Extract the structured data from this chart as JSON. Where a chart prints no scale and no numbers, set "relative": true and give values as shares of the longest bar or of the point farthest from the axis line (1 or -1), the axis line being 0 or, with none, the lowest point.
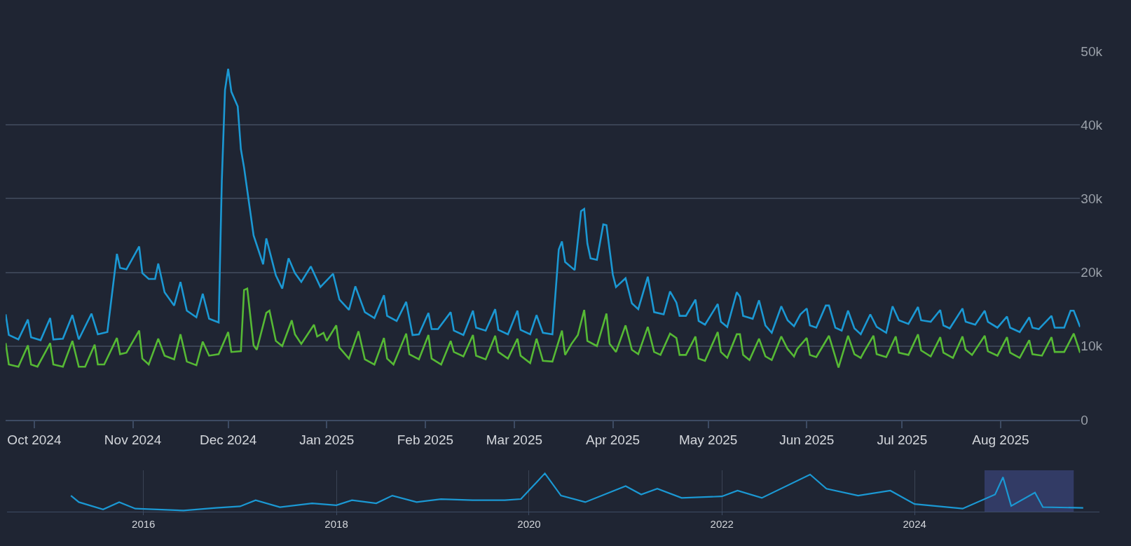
{
  "chart_data": [
    {
      "type": "line",
      "grid": "y",
      "marker": "none",
      "line_style": "solid",
      "xlim": [
        "2024-09-22",
        "2025-08-26"
      ],
      "xticks": [
        {
          "value": "2024-10-01",
          "label": "Oct 2024"
        },
        {
          "value": "2024-11-01",
          "label": "Nov 2024"
        },
        {
          "value": "2024-12-01",
          "label": "Dec 2024"
        },
        {
          "value": "2025-01-01",
          "label": "Jan 2025"
        },
        {
          "value": "2025-02-01",
          "label": "Feb 2025"
        },
        {
          "value": "2025-03-01",
          "label": "Mar 2025"
        },
        {
          "value": "2025-04-01",
          "label": "Apr 2025"
        },
        {
          "value": "2025-05-01",
          "label": "May 2025"
        },
        {
          "value": "2025-06-01",
          "label": "Jun 2025"
        },
        {
          "value": "2025-07-01",
          "label": "Jul 2025"
        },
        {
          "value": "2025-08-01",
          "label": "Aug 2025"
        }
      ],
      "ylim": [
        0,
        50000
      ],
      "yticks": [
        0,
        {
          "value": 10000,
          "label": "10k"
        },
        {
          "value": 20000,
          "label": "20k"
        },
        {
          "value": 30000,
          "label": "30k"
        },
        {
          "value": 40000,
          "label": "40k"
        },
        {
          "value": 50000,
          "label": "50k"
        }
      ],
      "series": [
        {
          "color": "#1b98d3",
          "x": [
            "2024-09-22",
            "2024-09-23",
            "2024-09-26",
            "2024-09-29",
            "2024-09-30",
            "2024-10-03",
            "2024-10-06",
            "2024-10-07",
            "2024-10-10",
            "2024-10-13",
            "2024-10-15",
            "2024-10-19",
            "2024-10-21",
            "2024-10-24",
            "2024-10-27",
            "2024-10-28",
            "2024-10-30",
            "2024-11-03",
            "2024-11-04",
            "2024-11-06",
            "2024-11-08",
            "2024-11-09",
            "2024-11-11",
            "2024-11-14",
            "2024-11-16",
            "2024-11-18",
            "2024-11-21",
            "2024-11-23",
            "2024-11-25",
            "2024-11-28",
            "2024-11-29",
            "2024-11-30",
            "2024-12-01",
            "2024-12-02",
            "2024-12-04",
            "2024-12-05",
            "2024-12-06",
            "2024-12-09",
            "2024-12-12",
            "2024-12-13",
            "2024-12-16",
            "2024-12-18",
            "2024-12-20",
            "2024-12-22",
            "2024-12-24",
            "2024-12-27",
            "2024-12-30",
            "2025-01-03",
            "2025-01-05",
            "2025-01-08",
            "2025-01-10",
            "2025-01-13",
            "2025-01-16",
            "2025-01-19",
            "2025-01-20",
            "2025-01-23",
            "2025-01-26",
            "2025-01-28",
            "2025-01-30",
            "2025-02-02",
            "2025-02-03",
            "2025-02-05",
            "2025-02-09",
            "2025-02-10",
            "2025-02-13",
            "2025-02-16",
            "2025-02-17",
            "2025-02-20",
            "2025-02-23",
            "2025-02-24",
            "2025-02-27",
            "2025-03-02",
            "2025-03-03",
            "2025-03-06",
            "2025-03-08",
            "2025-03-10",
            "2025-03-13",
            "2025-03-15",
            "2025-03-16",
            "2025-03-17",
            "2025-03-20",
            "2025-03-22",
            "2025-03-23",
            "2025-03-24",
            "2025-03-25",
            "2025-03-27",
            "2025-03-29",
            "2025-03-30",
            "2025-04-01",
            "2025-04-02",
            "2025-04-05",
            "2025-04-07",
            "2025-04-09",
            "2025-04-12",
            "2025-04-14",
            "2025-04-17",
            "2025-04-19",
            "2025-04-21",
            "2025-04-22",
            "2025-04-24",
            "2025-04-27",
            "2025-04-28",
            "2025-04-30",
            "2025-05-04",
            "2025-05-05",
            "2025-05-07",
            "2025-05-10",
            "2025-05-11",
            "2025-05-12",
            "2025-05-15",
            "2025-05-17",
            "2025-05-19",
            "2025-05-21",
            "2025-05-24",
            "2025-05-26",
            "2025-05-28",
            "2025-05-30",
            "2025-06-01",
            "2025-06-02",
            "2025-06-04",
            "2025-06-07",
            "2025-06-08",
            "2025-06-10",
            "2025-06-12",
            "2025-06-14",
            "2025-06-16",
            "2025-06-18",
            "2025-06-21",
            "2025-06-23",
            "2025-06-26",
            "2025-06-28",
            "2025-06-30",
            "2025-07-03",
            "2025-07-06",
            "2025-07-07",
            "2025-07-10",
            "2025-07-13",
            "2025-07-14",
            "2025-07-16",
            "2025-07-20",
            "2025-07-21",
            "2025-07-24",
            "2025-07-27",
            "2025-07-28",
            "2025-07-31",
            "2025-08-03",
            "2025-08-04",
            "2025-08-07",
            "2025-08-10",
            "2025-08-11",
            "2025-08-13",
            "2025-08-17",
            "2025-08-18",
            "2025-08-21",
            "2025-08-23",
            "2025-08-24",
            "2025-08-26"
          ],
          "values": [
            14300,
            11500,
            10900,
            13600,
            11200,
            10800,
            13800,
            10900,
            11000,
            14200,
            10900,
            14400,
            11600,
            11900,
            22500,
            20600,
            20400,
            23500,
            19900,
            19100,
            19100,
            21200,
            17300,
            15500,
            18700,
            14800,
            13900,
            17100,
            13700,
            13200,
            32400,
            44700,
            47600,
            44500,
            42500,
            36700,
            34200,
            25000,
            21100,
            24600,
            19600,
            17800,
            21900,
            19900,
            18700,
            20800,
            18000,
            19800,
            16300,
            14900,
            18100,
            14600,
            13800,
            16900,
            14100,
            13400,
            16000,
            11500,
            11600,
            14500,
            12300,
            12300,
            14600,
            12100,
            11500,
            14800,
            12500,
            12100,
            15000,
            12200,
            11600,
            14800,
            12200,
            11600,
            14200,
            11800,
            11600,
            23100,
            24200,
            21400,
            20300,
            28300,
            28600,
            23900,
            21900,
            21700,
            26500,
            26400,
            19700,
            18000,
            19200,
            15800,
            15000,
            19400,
            14600,
            14300,
            17400,
            15900,
            14100,
            14100,
            16300,
            13400,
            12900,
            15700,
            13300,
            12600,
            17300,
            16700,
            14100,
            13700,
            16200,
            12800,
            11800,
            15400,
            13500,
            12700,
            14300,
            15100,
            12800,
            12500,
            15500,
            15500,
            12500,
            12100,
            14800,
            12400,
            11600,
            14300,
            12600,
            11800,
            15400,
            13500,
            13000,
            15300,
            13500,
            13300,
            14900,
            12800,
            12400,
            15100,
            13300,
            12900,
            14800,
            13300,
            12500,
            14000,
            12500,
            11900,
            13900,
            12500,
            12300,
            14100,
            12500,
            12500,
            14800,
            14800,
            12600
          ]
        },
        {
          "color": "#56b935",
          "x": [
            "2024-09-22",
            "2024-09-23",
            "2024-09-26",
            "2024-09-29",
            "2024-09-30",
            "2024-10-02",
            "2024-10-06",
            "2024-10-07",
            "2024-10-10",
            "2024-10-13",
            "2024-10-15",
            "2024-10-17",
            "2024-10-20",
            "2024-10-21",
            "2024-10-23",
            "2024-10-27",
            "2024-10-28",
            "2024-10-30",
            "2024-11-03",
            "2024-11-04",
            "2024-11-06",
            "2024-11-09",
            "2024-11-11",
            "2024-11-14",
            "2024-11-16",
            "2024-11-18",
            "2024-11-21",
            "2024-11-23",
            "2024-11-25",
            "2024-11-28",
            "2024-12-01",
            "2024-12-02",
            "2024-12-05",
            "2024-12-06",
            "2024-12-07",
            "2024-12-09",
            "2024-12-10",
            "2024-12-13",
            "2024-12-14",
            "2024-12-16",
            "2024-12-18",
            "2024-12-21",
            "2024-12-22",
            "2024-12-24",
            "2024-12-28",
            "2024-12-29",
            "2024-12-31",
            "2025-01-01",
            "2025-01-04",
            "2025-01-05",
            "2025-01-08",
            "2025-01-11",
            "2025-01-13",
            "2025-01-16",
            "2025-01-19",
            "2025-01-20",
            "2025-01-22",
            "2025-01-26",
            "2025-01-27",
            "2025-01-30",
            "2025-02-02",
            "2025-02-03",
            "2025-02-06",
            "2025-02-09",
            "2025-02-10",
            "2025-02-13",
            "2025-02-16",
            "2025-02-17",
            "2025-02-20",
            "2025-02-23",
            "2025-02-24",
            "2025-02-27",
            "2025-03-02",
            "2025-03-03",
            "2025-03-06",
            "2025-03-08",
            "2025-03-10",
            "2025-03-13",
            "2025-03-16",
            "2025-03-17",
            "2025-03-19",
            "2025-03-21",
            "2025-03-23",
            "2025-03-24",
            "2025-03-27",
            "2025-03-30",
            "2025-03-31",
            "2025-04-02",
            "2025-04-05",
            "2025-04-07",
            "2025-04-09",
            "2025-04-12",
            "2025-04-14",
            "2025-04-16",
            "2025-04-19",
            "2025-04-21",
            "2025-04-22",
            "2025-04-24",
            "2025-04-27",
            "2025-04-28",
            "2025-04-30",
            "2025-05-04",
            "2025-05-05",
            "2025-05-07",
            "2025-05-10",
            "2025-05-11",
            "2025-05-12",
            "2025-05-14",
            "2025-05-17",
            "2025-05-19",
            "2025-05-21",
            "2025-05-24",
            "2025-05-26",
            "2025-05-28",
            "2025-05-29",
            "2025-06-01",
            "2025-06-02",
            "2025-06-04",
            "2025-06-08",
            "2025-06-11",
            "2025-06-14",
            "2025-06-16",
            "2025-06-18",
            "2025-06-19",
            "2025-06-22",
            "2025-06-23",
            "2025-06-26",
            "2025-06-29",
            "2025-06-30",
            "2025-07-03",
            "2025-07-06",
            "2025-07-07",
            "2025-07-10",
            "2025-07-13",
            "2025-07-14",
            "2025-07-17",
            "2025-07-20",
            "2025-07-21",
            "2025-07-23",
            "2025-07-27",
            "2025-07-28",
            "2025-07-31",
            "2025-08-03",
            "2025-08-04",
            "2025-08-07",
            "2025-08-10",
            "2025-08-11",
            "2025-08-14",
            "2025-08-17",
            "2025-08-18",
            "2025-08-21",
            "2025-08-24",
            "2025-08-26"
          ],
          "values": [
            10400,
            7500,
            7200,
            10100,
            7500,
            7200,
            10400,
            7500,
            7200,
            10700,
            7200,
            7200,
            10200,
            7500,
            7500,
            11100,
            8900,
            9100,
            12100,
            8300,
            7500,
            11000,
            8700,
            8200,
            11600,
            7900,
            7400,
            10600,
            8700,
            8900,
            11900,
            9200,
            9300,
            17600,
            17800,
            10100,
            9500,
            14500,
            14800,
            10700,
            10000,
            13500,
            11600,
            10300,
            12900,
            11300,
            11800,
            10700,
            12800,
            9800,
            8300,
            12000,
            8200,
            7500,
            11100,
            8300,
            7500,
            11700,
            8900,
            8200,
            11500,
            8300,
            7500,
            10700,
            9200,
            8600,
            11500,
            8700,
            8200,
            11400,
            9200,
            8300,
            11000,
            8700,
            7700,
            11000,
            8000,
            7900,
            12100,
            8800,
            10300,
            11500,
            14900,
            10700,
            10000,
            14400,
            10300,
            9200,
            12800,
            9500,
            8900,
            12600,
            9200,
            8800,
            11700,
            11100,
            8800,
            8800,
            11300,
            8300,
            8000,
            11900,
            9200,
            8400,
            11600,
            11600,
            8800,
            8100,
            11000,
            8600,
            8100,
            11300,
            9600,
            8600,
            9600,
            11100,
            8800,
            8500,
            11400,
            7100,
            11400,
            8900,
            8400,
            9200,
            11400,
            8900,
            8500,
            11300,
            9100,
            8800,
            11600,
            9400,
            8600,
            11200,
            9100,
            8400,
            11300,
            9500,
            8800,
            11400,
            9300,
            8700,
            11200,
            9100,
            8400,
            10800,
            8900,
            8700,
            11200,
            9200,
            9200,
            11700,
            9100
          ]
        }
      ]
    },
    {
      "type": "line",
      "relative": true,
      "grid": "x",
      "tick_labels": "x",
      "marker": "none",
      "line_style": "solid",
      "xlim": [
        "2014-08-01",
        "2025-12-01"
      ],
      "xticks": [
        {
          "value": "2016-01-01",
          "label": "2016"
        },
        {
          "value": "2018-01-01",
          "label": "2018"
        },
        {
          "value": "2020-01-01",
          "label": "2020"
        },
        {
          "value": "2022-01-01",
          "label": "2022"
        },
        {
          "value": "2024-01-01",
          "label": "2024"
        }
      ],
      "bands": [
        {
          "axis": "x",
          "from": "2024-09-22",
          "to": "2025-08-26",
          "color": "#363f6e"
        }
      ],
      "series": [
        {
          "color": "#1b98d3",
          "x": [
            "2015-04",
            "2015-05",
            "2015-08",
            "2015-10",
            "2015-12",
            "2016-06",
            "2016-10",
            "2017-01",
            "2017-03",
            "2017-06",
            "2017-10",
            "2018-01",
            "2018-03",
            "2018-06",
            "2018-08",
            "2018-11",
            "2019-02",
            "2019-06",
            "2019-10",
            "2019-12",
            "2020-03",
            "2020-05",
            "2020-08",
            "2021-01",
            "2021-03",
            "2021-05",
            "2021-08",
            "2022-01",
            "2022-03",
            "2022-06",
            "2022-12",
            "2023-02",
            "2023-06",
            "2023-10",
            "2024-01",
            "2024-07",
            "2024-11",
            "2024-12",
            "2025-01",
            "2025-04",
            "2025-05",
            "2025-10"
          ],
          "values": [
            0.42,
            0.25,
            0.06,
            0.25,
            0.08,
            0.03,
            0.1,
            0.14,
            0.3,
            0.12,
            0.22,
            0.17,
            0.3,
            0.22,
            0.42,
            0.25,
            0.33,
            0.3,
            0.3,
            0.33,
            1,
            0.42,
            0.25,
            0.67,
            0.45,
            0.6,
            0.36,
            0.4,
            0.55,
            0.36,
            0.97,
            0.6,
            0.42,
            0.55,
            0.2,
            0.08,
            0.45,
            0.9,
            0.15,
            0.5,
            0.12,
            0.1
          ]
        }
      ]
    }
  ]
}
